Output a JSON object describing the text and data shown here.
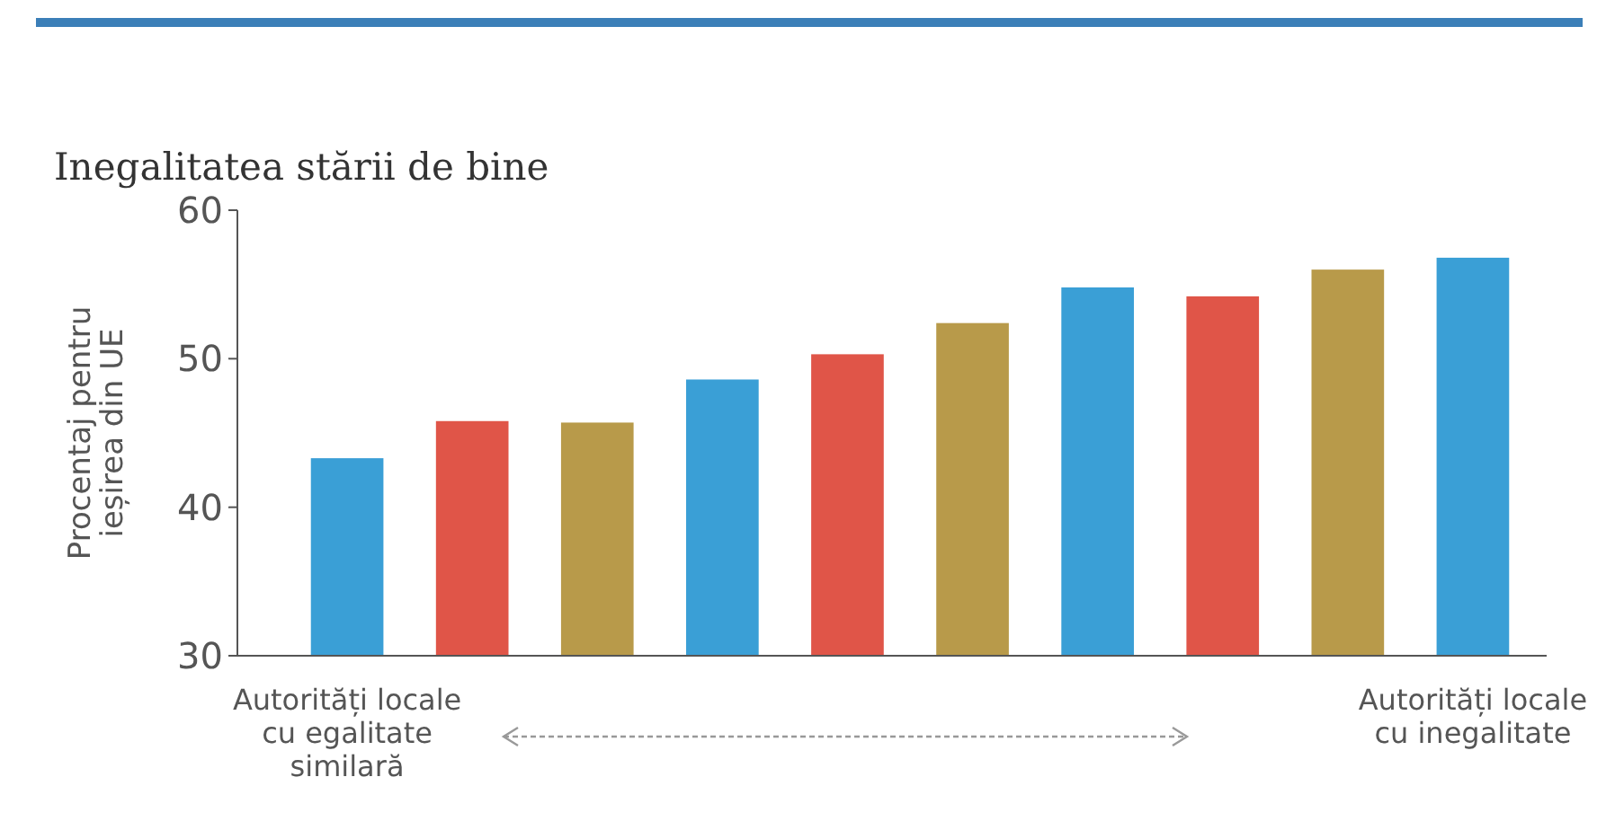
{
  "chart_data": {
    "type": "bar",
    "title": "Inegalitatea stării de bine",
    "ylabel": "Procentaj pentru ieșirea din UE",
    "categories": [
      "Autorități locale cu egalitate similară",
      null,
      null,
      null,
      null,
      null,
      null,
      null,
      null,
      "Autorități locale cu inegalitate"
    ],
    "values": [
      43.3,
      45.8,
      45.7,
      48.6,
      50.3,
      52.4,
      54.8,
      54.2,
      56,
      56.8
    ],
    "colors": [
      "#3a9fd6",
      "#e05548",
      "#b89a4a",
      "#3a9fd6",
      "#e05548",
      "#b89a4a",
      "#3a9fd6",
      "#e05548",
      "#b89a4a",
      "#3a9fd6"
    ],
    "ylim": [
      30,
      60
    ],
    "yticks": [
      30,
      40,
      50,
      60
    ],
    "grid": false
  }
}
